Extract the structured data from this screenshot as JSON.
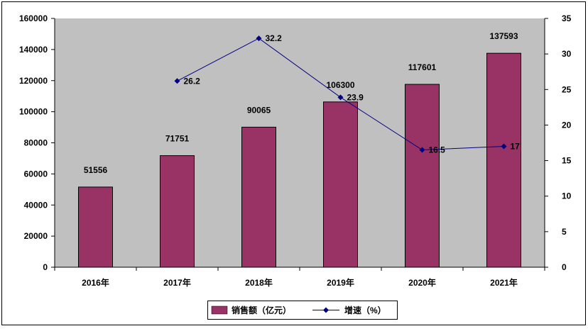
{
  "chart_data": {
    "type": "bar",
    "categories": [
      "2016年",
      "2017年",
      "2018年",
      "2019年",
      "2020年",
      "2021年"
    ],
    "series": [
      {
        "name": "销售额（亿元）",
        "type": "bar",
        "axis": "left",
        "values": [
          51556,
          71751,
          90065,
          106300,
          117601,
          137593
        ],
        "data_labels": [
          "51556",
          "71751",
          "90065",
          "106300",
          "117601",
          "137593"
        ],
        "color": "#993366"
      },
      {
        "name": "增速（%）",
        "type": "line",
        "axis": "right",
        "values": [
          null,
          26.2,
          32.2,
          23.9,
          16.5,
          17
        ],
        "data_labels": [
          "",
          "26.2",
          "32.2",
          "23.9",
          "16.5",
          "17"
        ],
        "color": "#000080"
      }
    ],
    "ylim_left": [
      0,
      160000
    ],
    "yticks_left": [
      "0",
      "20000",
      "40000",
      "60000",
      "80000",
      "100000",
      "120000",
      "140000",
      "160000"
    ],
    "ylim_right": [
      0,
      35
    ],
    "yticks_right": [
      "0",
      "5",
      "10",
      "15",
      "20",
      "25",
      "30",
      "35"
    ],
    "plot_background": "#c0c0c0",
    "grid": false,
    "legend_position": "bottom"
  }
}
